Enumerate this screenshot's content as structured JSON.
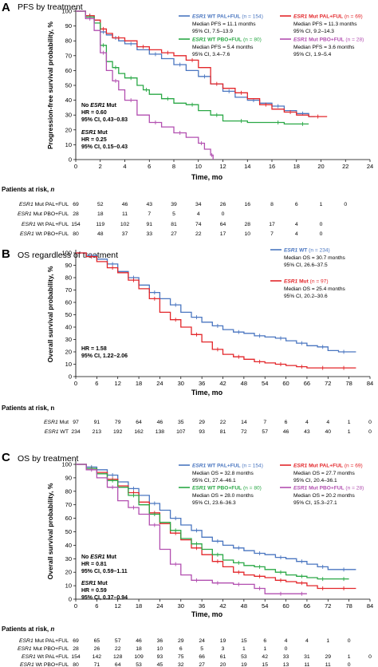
{
  "colors": {
    "wt_pal": "#4a76c0",
    "mut_pal": "#e3262a",
    "wt_pbo": "#2aa846",
    "mut_pbo": "#b24fb0",
    "wt": "#4a76c0",
    "mut": "#e3262a"
  },
  "chart_data": [
    {
      "type": "line",
      "panel_letter": "A",
      "title": "PFS by treatment",
      "xlabel": "Time, mo",
      "ylabel": "Progression-free survival probability, %",
      "xlim": [
        0,
        24
      ],
      "ylim": [
        0,
        100
      ],
      "xticks": [
        0,
        2,
        4,
        6,
        8,
        10,
        12,
        14,
        16,
        18,
        20,
        22,
        24
      ],
      "yticks": [
        0,
        10,
        20,
        30,
        40,
        50,
        60,
        70,
        80,
        90,
        100
      ],
      "legend": [
        {
          "key": "wt_pal",
          "prefix": "ESR1",
          "rest": " WT PAL+FUL",
          "n": " (n = 154)",
          "line1": "Median PFS = 11.1 months",
          "line2": "95% CI, 7.5–13.9"
        },
        {
          "key": "mut_pal",
          "prefix": "ESR1",
          "rest": " Mut PAL+FUL",
          "n": " (n = 69)",
          "line1": "Median PFS = 11.3 months",
          "line2": "95% CI, 9.2–14.3"
        },
        {
          "key": "wt_pbo",
          "prefix": "ESR1",
          "rest": " WT PBO+FUL",
          "n": " (n = 80)",
          "line1": "Median PFS = 5.4 months",
          "line2": "95% CI, 3.4–7.6"
        },
        {
          "key": "mut_pbo",
          "prefix": "ESR1",
          "rest": " Mut PBO+FUL",
          "n": " (n = 28)",
          "line1": "Median PFS = 3.6 months",
          "line2": "95% CI, 1.9–5.4"
        }
      ],
      "annotations": [
        {
          "head_pre": "No ",
          "head_em": "ESR1",
          "head_post": " Mut",
          "hr": "HR = 0.60",
          "ci": "95% CI, 0.43–0.83"
        },
        {
          "head_pre": "",
          "head_em": "ESR1",
          "head_post": " Mut",
          "hr": "HR = 0.25",
          "ci": "95% CI, 0.15–0.43"
        }
      ],
      "series": [
        {
          "key": "wt_pal",
          "x": [
            0,
            0.8,
            1.5,
            2,
            2.5,
            3,
            3.5,
            4,
            5,
            6,
            7,
            8,
            9,
            10,
            11,
            12,
            13,
            14,
            15,
            16,
            17,
            18,
            19,
            19.5
          ],
          "y": [
            100,
            97,
            94,
            86,
            84,
            82,
            80,
            78,
            74,
            71,
            68,
            64,
            60,
            56,
            51,
            46,
            42,
            40,
            38,
            36,
            33,
            31,
            29,
            29
          ]
        },
        {
          "key": "mut_pal",
          "x": [
            0,
            0.8,
            1.5,
            2,
            2.5,
            3,
            4,
            5,
            6,
            7,
            8,
            9,
            10,
            11,
            12,
            13,
            14,
            15,
            16,
            17,
            18,
            19,
            20.5
          ],
          "y": [
            100,
            97,
            94,
            88,
            85,
            82,
            80,
            76,
            74,
            72,
            70,
            67,
            62,
            51,
            48,
            45,
            41,
            37,
            34,
            32,
            30,
            29,
            29
          ]
        },
        {
          "key": "wt_pbo",
          "x": [
            0,
            0.8,
            1.5,
            2,
            2.5,
            3,
            3.5,
            4,
            5,
            5.5,
            6,
            7,
            8,
            9,
            10,
            11,
            12,
            13,
            14,
            16,
            17,
            18,
            19
          ],
          "y": [
            100,
            96,
            92,
            77,
            66,
            62,
            58,
            55,
            50,
            47,
            44,
            41,
            38,
            37,
            33,
            30,
            26,
            26,
            25,
            25,
            24,
            24,
            24
          ]
        },
        {
          "key": "mut_pbo",
          "x": [
            0,
            0.8,
            1.5,
            2,
            2.5,
            3,
            3.5,
            4,
            5,
            6,
            7,
            8,
            9,
            10,
            10.5,
            11,
            11.2
          ],
          "y": [
            100,
            95,
            87,
            72,
            60,
            53,
            47,
            40,
            30,
            25,
            22,
            18,
            15,
            11,
            7,
            3,
            0
          ]
        }
      ],
      "risk": {
        "title": "Patients at risk,",
        "title_em": "n",
        "rows": [
          {
            "prefix": "ESR1",
            "rest": " Mut PAL+FUL",
            "values": [
              "69",
              "52",
              "46",
              "43",
              "39",
              "34",
              "26",
              "16",
              "8",
              "6",
              "1",
              "0"
            ]
          },
          {
            "prefix": "ESR1",
            "rest": " Mut PBO+FUL",
            "values": [
              "28",
              "18",
              "11",
              "7",
              "5",
              "4",
              "0"
            ]
          },
          {
            "prefix": "ESR1",
            "rest": " Wt PAL+FUL",
            "values": [
              "154",
              "119",
              "102",
              "91",
              "81",
              "74",
              "64",
              "28",
              "17",
              "4",
              "0"
            ]
          },
          {
            "prefix": "ESR1",
            "rest": " Wt PBO+FUL",
            "values": [
              "80",
              "48",
              "37",
              "33",
              "27",
              "22",
              "17",
              "10",
              "7",
              "4",
              "0"
            ]
          }
        ]
      }
    },
    {
      "type": "line",
      "panel_letter": "B",
      "title": "OS regardless of treatment",
      "xlabel": "Time, mo",
      "ylabel": "Overall survival probability, %",
      "xlim": [
        0,
        84
      ],
      "ylim": [
        0,
        100
      ],
      "xticks": [
        0,
        6,
        12,
        18,
        24,
        30,
        36,
        42,
        48,
        54,
        60,
        66,
        72,
        78,
        84
      ],
      "yticks": [
        0,
        10,
        20,
        30,
        40,
        50,
        60,
        70,
        80,
        90,
        100
      ],
      "legend": [
        {
          "key": "wt",
          "prefix": "ESR1",
          "rest": " WT",
          "n": " (n = 234)",
          "line1": "Median OS = 30.7 months",
          "line2": "95% CI, 26.6–37.5"
        },
        {
          "key": "mut",
          "prefix": "ESR1",
          "rest": " Mut",
          "n": " (n = 97)",
          "line1": "Median OS = 25.4 months",
          "line2": "95% CI, 20.2–30.6"
        }
      ],
      "annotations": [
        {
          "head_pre": "",
          "head_em": "",
          "head_post": "",
          "hr": "HR = 1.58",
          "ci": "95% CI, 1.22–2.06"
        }
      ],
      "series": [
        {
          "key": "wt",
          "x": [
            0,
            3,
            6,
            9,
            12,
            15,
            18,
            21,
            24,
            27,
            30,
            33,
            36,
            39,
            42,
            45,
            48,
            51,
            54,
            57,
            60,
            63,
            66,
            69,
            72,
            75,
            78,
            80
          ],
          "y": [
            100,
            98,
            95,
            91,
            85,
            80,
            74,
            68,
            63,
            58,
            52,
            48,
            44,
            41,
            38,
            36,
            35,
            33,
            32,
            31,
            29,
            27,
            25,
            24,
            21,
            20,
            20,
            20
          ]
        },
        {
          "key": "mut",
          "x": [
            0,
            3,
            6,
            9,
            12,
            15,
            18,
            21,
            24,
            27,
            30,
            33,
            36,
            39,
            42,
            45,
            48,
            51,
            54,
            57,
            60,
            63,
            66,
            69,
            72,
            75,
            78,
            80
          ],
          "y": [
            100,
            97,
            93,
            88,
            84,
            78,
            71,
            63,
            52,
            46,
            40,
            34,
            28,
            22,
            18,
            16,
            14,
            12,
            11,
            10,
            9,
            8,
            7,
            7,
            7,
            7,
            7,
            7
          ]
        }
      ],
      "risk": {
        "title": "Patients at risk, n",
        "title_em": "",
        "rows": [
          {
            "prefix": "ESR1",
            "rest": " Mut",
            "values": [
              "97",
              "91",
              "79",
              "64",
              "46",
              "35",
              "29",
              "22",
              "14",
              "7",
              "6",
              "4",
              "4",
              "1",
              "0"
            ]
          },
          {
            "prefix": "ESR1",
            "rest": " WT",
            "values": [
              "234",
              "213",
              "192",
              "162",
              "138",
              "107",
              "93",
              "81",
              "72",
              "57",
              "46",
              "43",
              "40",
              "1",
              "0"
            ]
          }
        ]
      }
    },
    {
      "type": "line",
      "panel_letter": "C",
      "title": "OS by treatment",
      "xlabel": "Time, mo",
      "ylabel": "Overall survival probability, %",
      "xlim": [
        0,
        84
      ],
      "ylim": [
        0,
        100
      ],
      "xticks": [
        0,
        6,
        12,
        18,
        24,
        30,
        36,
        42,
        48,
        54,
        60,
        66,
        72,
        78,
        84
      ],
      "yticks": [
        0,
        10,
        20,
        30,
        40,
        50,
        60,
        70,
        80,
        90,
        100
      ],
      "legend": [
        {
          "key": "wt_pal",
          "prefix": "ESR1",
          "rest": " WT PAL+FUL",
          "n": " (n = 154)",
          "line1": "Median OS = 32.8 months",
          "line2": "95% CI, 27.4–46.1"
        },
        {
          "key": "mut_pal",
          "prefix": "ESR1",
          "rest": " Mut PAL+FUL",
          "n": " (n = 69)",
          "line1": "Median OS = 27.7 months",
          "line2": "95% CI, 20.4–36.1"
        },
        {
          "key": "wt_pbo",
          "prefix": "ESR1",
          "rest": " WT PBO+FUL",
          "n": " (n = 80)",
          "line1": "Median OS = 28.0 months",
          "line2": "95% CI, 23.6–36.3"
        },
        {
          "key": "mut_pbo",
          "prefix": "ESR1",
          "rest": " Mut PBO+FUL",
          "n": " (n = 28)",
          "line1": "Median OS = 20.2 months",
          "line2": "95% CI, 15.3–27.1"
        }
      ],
      "annotations": [
        {
          "head_pre": "No ",
          "head_em": "ESR1",
          "head_post": " Mut",
          "hr": "HR = 0.81",
          "ci": "95% CI, 0.59–1.11"
        },
        {
          "head_pre": "",
          "head_em": "ESR1",
          "head_post": " Mut",
          "hr": "HR = 0.59",
          "ci": "95% CI, 0.37–0.94"
        }
      ],
      "series": [
        {
          "key": "wt_pal",
          "x": [
            0,
            3,
            6,
            9,
            12,
            15,
            18,
            21,
            24,
            27,
            30,
            33,
            36,
            39,
            42,
            45,
            48,
            51,
            54,
            57,
            60,
            63,
            66,
            69,
            72,
            75,
            78,
            80
          ],
          "y": [
            100,
            98,
            96,
            92,
            87,
            82,
            77,
            71,
            66,
            60,
            55,
            51,
            46,
            43,
            40,
            38,
            36,
            34,
            33,
            31,
            30,
            28,
            26,
            24,
            22,
            22,
            22,
            22
          ]
        },
        {
          "key": "mut_pal",
          "x": [
            0,
            3,
            6,
            9,
            12,
            15,
            18,
            21,
            24,
            27,
            30,
            33,
            36,
            39,
            42,
            45,
            48,
            51,
            54,
            57,
            60,
            63,
            66,
            69,
            72,
            75,
            78,
            80
          ],
          "y": [
            100,
            97,
            94,
            89,
            84,
            79,
            72,
            64,
            56,
            49,
            44,
            38,
            33,
            28,
            24,
            20,
            18,
            17,
            16,
            14,
            13,
            12,
            10,
            8,
            8,
            8,
            8,
            8
          ]
        },
        {
          "key": "wt_pbo",
          "x": [
            0,
            3,
            6,
            9,
            12,
            15,
            18,
            21,
            24,
            27,
            30,
            33,
            36,
            39,
            42,
            45,
            48,
            51,
            54,
            57,
            60,
            63,
            66,
            69,
            72,
            75,
            78
          ],
          "y": [
            100,
            97,
            93,
            88,
            83,
            77,
            70,
            63,
            57,
            51,
            45,
            41,
            37,
            33,
            29,
            27,
            25,
            24,
            22,
            20,
            18,
            17,
            16,
            15,
            15,
            15,
            15
          ]
        },
        {
          "key": "mut_pbo",
          "x": [
            0,
            3,
            6,
            9,
            12,
            15,
            18,
            21,
            24,
            27,
            30,
            33,
            36,
            39,
            42,
            45,
            48,
            51,
            54,
            57,
            60,
            63,
            66
          ],
          "y": [
            100,
            96,
            90,
            83,
            73,
            68,
            63,
            55,
            37,
            26,
            18,
            14,
            14,
            12,
            12,
            11,
            11,
            8,
            4,
            4,
            4,
            4,
            4
          ]
        }
      ],
      "risk": {
        "title": "Patients at risk,",
        "title_em": "n",
        "rows": [
          {
            "prefix": "ESR1",
            "rest": " Mut PAL+FUL",
            "values": [
              "69",
              "65",
              "57",
              "46",
              "36",
              "29",
              "24",
              "19",
              "15",
              "6",
              "4",
              "4",
              "1",
              "0"
            ]
          },
          {
            "prefix": "ESR1",
            "rest": " Mut PBO+FUL",
            "values": [
              "28",
              "26",
              "22",
              "18",
              "10",
              "6",
              "5",
              "3",
              "1",
              "1",
              "0"
            ]
          },
          {
            "prefix": "ESR1",
            "rest": " Wt PAL+FUL",
            "values": [
              "154",
              "142",
              "128",
              "109",
              "93",
              "75",
              "66",
              "61",
              "53",
              "42",
              "33",
              "31",
              "29",
              "1",
              "0"
            ]
          },
          {
            "prefix": "ESR1",
            "rest": " Wt PBO+FUL",
            "values": [
              "80",
              "71",
              "64",
              "53",
              "45",
              "32",
              "27",
              "20",
              "19",
              "15",
              "13",
              "11",
              "11",
              "0"
            ]
          }
        ]
      }
    }
  ]
}
